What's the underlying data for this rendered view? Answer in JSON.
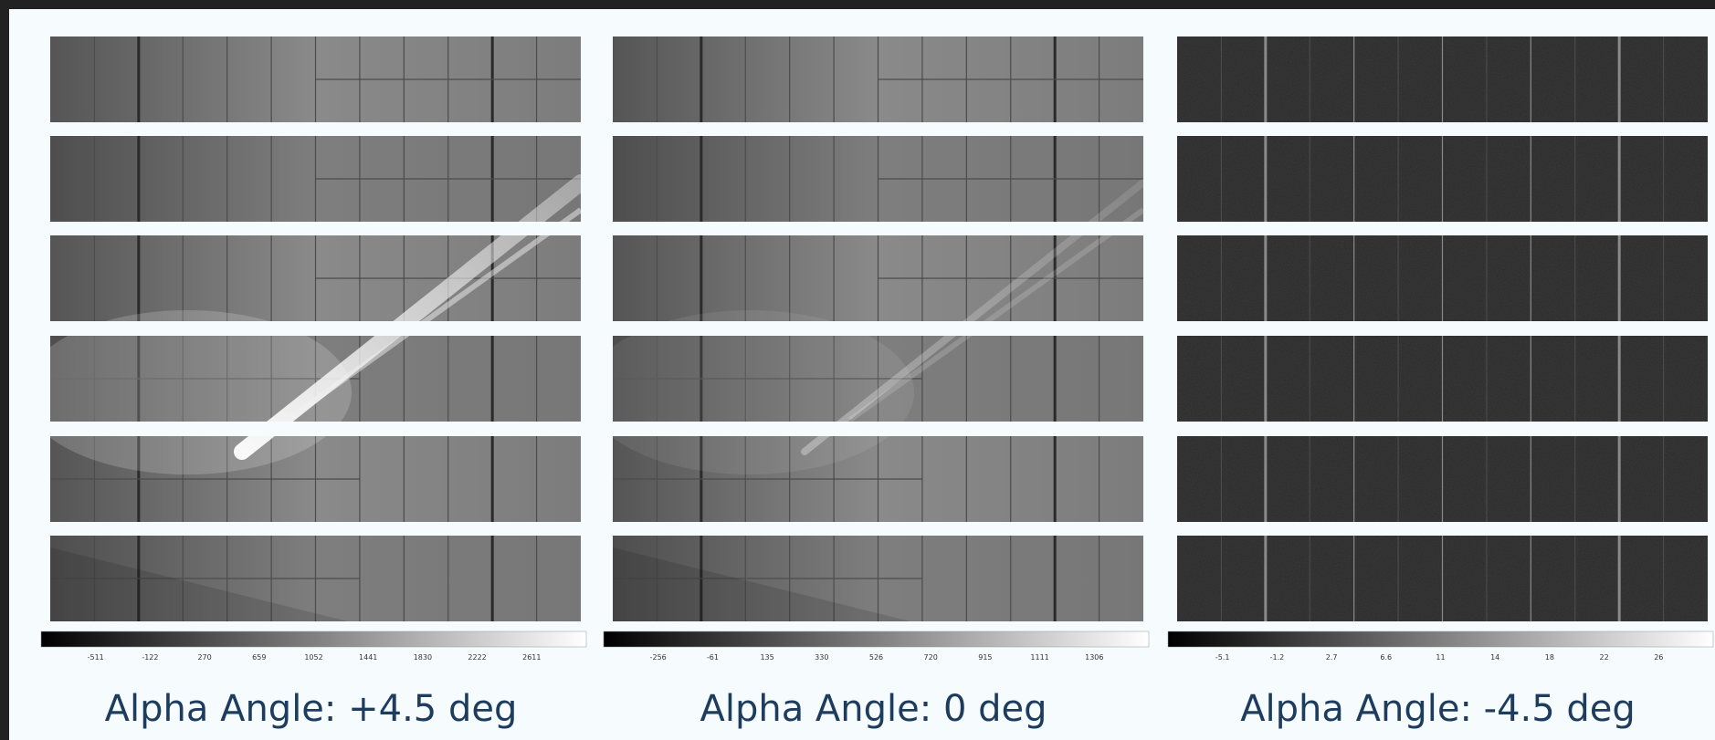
{
  "panels": [
    {
      "caption": "Alpha Angle: +4.5 deg",
      "colorbar_ticks": [
        -511,
        -122,
        270,
        659,
        1052,
        1441,
        1830,
        2222,
        2611
      ]
    },
    {
      "caption": "Alpha Angle: 0 deg",
      "colorbar_ticks": [
        -256,
        -61,
        135,
        330,
        526,
        720,
        915,
        1111,
        1306
      ]
    },
    {
      "caption": "Alpha Angle: -4.5 deg",
      "colorbar_ticks": [
        -5.1,
        -1.2,
        2.7,
        6.6,
        11,
        14,
        18,
        22,
        26
      ]
    }
  ]
}
